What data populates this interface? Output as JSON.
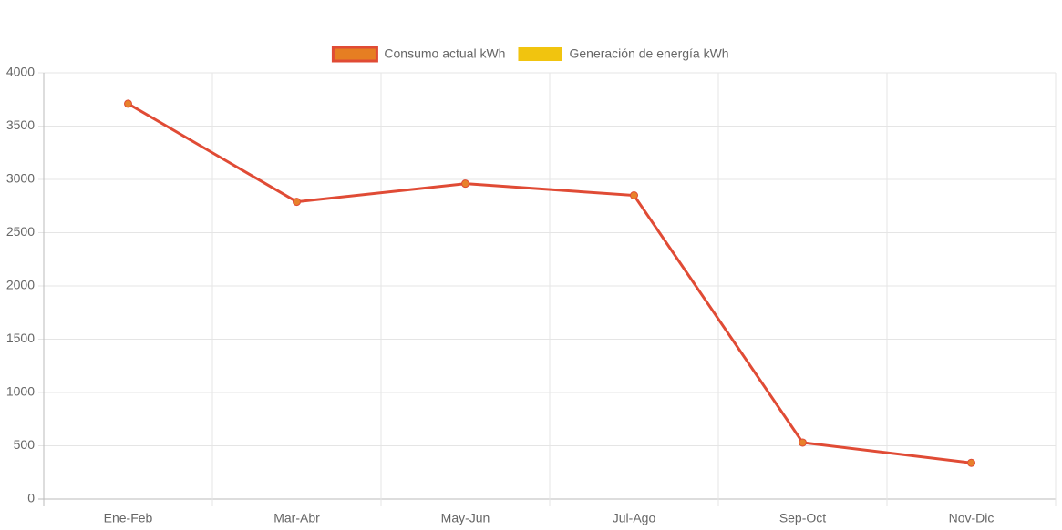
{
  "chart_data": {
    "type": "line",
    "categories": [
      "Ene-Feb",
      "Mar-Abr",
      "May-Jun",
      "Jul-Ago",
      "Sep-Oct",
      "Nov-Dic"
    ],
    "series": [
      {
        "name": "Consumo actual kWh",
        "color": "#e04b35",
        "point_color": "#e8812b",
        "legend_fill": "#e67e22",
        "values": [
          3710,
          2790,
          2960,
          2850,
          530,
          340
        ]
      },
      {
        "name": "Generación de energía kWh",
        "color": "#f1c40f",
        "values": [
          null,
          null,
          null,
          null,
          null,
          null
        ]
      }
    ],
    "ylim": [
      0,
      4000
    ],
    "yticks": [
      0,
      500,
      1000,
      1500,
      2000,
      2500,
      3000,
      3500,
      4000
    ],
    "grid": true,
    "legend": "top"
  }
}
